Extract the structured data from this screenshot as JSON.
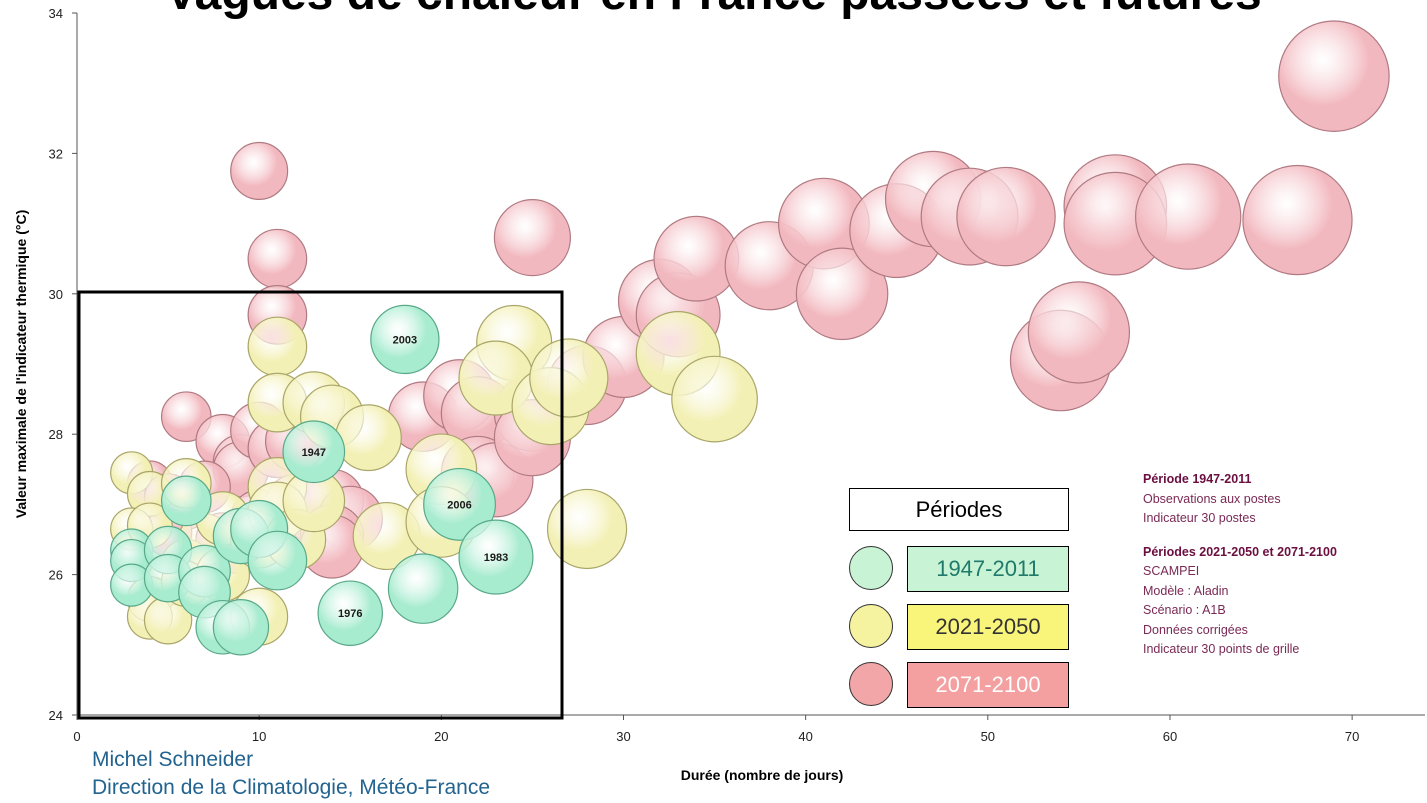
{
  "chart_data": {
    "type": "scatter",
    "title": "Vagues de chaleur en France passées et futures",
    "xlabel": "Durée (nombre de jours)",
    "ylabel": "Valeur maximale de l'indicateur thermique (°C)",
    "xlim": [
      0,
      74
    ],
    "ylim": [
      24,
      34
    ],
    "xticks": [
      0,
      10,
      20,
      30,
      40,
      50,
      60,
      70
    ],
    "yticks": [
      24,
      26,
      28,
      30,
      32,
      34
    ],
    "grid": false,
    "series": [
      {
        "name": "2071-2100",
        "color": "#f2b8bf",
        "points": [
          {
            "x": 10,
            "y": 31.75
          },
          {
            "x": 11,
            "y": 30.5
          },
          {
            "x": 11,
            "y": 29.7
          },
          {
            "x": 6,
            "y": 28.25
          },
          {
            "x": 8,
            "y": 27.9
          },
          {
            "x": 9,
            "y": 27.6
          },
          {
            "x": 9,
            "y": 27.5
          },
          {
            "x": 10,
            "y": 28.05
          },
          {
            "x": 11,
            "y": 27.8
          },
          {
            "x": 12,
            "y": 27.9
          },
          {
            "x": 4,
            "y": 27.3
          },
          {
            "x": 5,
            "y": 27.1
          },
          {
            "x": 7,
            "y": 27.25
          },
          {
            "x": 6,
            "y": 27.0
          },
          {
            "x": 5,
            "y": 26.6
          },
          {
            "x": 8,
            "y": 26.5
          },
          {
            "x": 9,
            "y": 26.4
          },
          {
            "x": 10,
            "y": 26.8
          },
          {
            "x": 12,
            "y": 27.0
          },
          {
            "x": 13,
            "y": 26.9
          },
          {
            "x": 14,
            "y": 27.05
          },
          {
            "x": 15,
            "y": 26.8
          },
          {
            "x": 14,
            "y": 26.55
          },
          {
            "x": 14,
            "y": 26.4
          },
          {
            "x": 19,
            "y": 28.25
          },
          {
            "x": 21,
            "y": 28.55
          },
          {
            "x": 22,
            "y": 28.3
          },
          {
            "x": 22,
            "y": 27.45
          },
          {
            "x": 23,
            "y": 27.35
          },
          {
            "x": 25,
            "y": 30.8
          },
          {
            "x": 25,
            "y": 28.3
          },
          {
            "x": 25,
            "y": 27.95
          },
          {
            "x": 28,
            "y": 28.7
          },
          {
            "x": 30,
            "y": 29.1
          },
          {
            "x": 32,
            "y": 29.9
          },
          {
            "x": 33,
            "y": 29.7
          },
          {
            "x": 34,
            "y": 30.5
          },
          {
            "x": 38,
            "y": 30.4
          },
          {
            "x": 41,
            "y": 31.0
          },
          {
            "x": 42,
            "y": 30.0
          },
          {
            "x": 45,
            "y": 30.9
          },
          {
            "x": 47,
            "y": 31.35
          },
          {
            "x": 49,
            "y": 31.1
          },
          {
            "x": 51,
            "y": 31.1
          },
          {
            "x": 54,
            "y": 29.05
          },
          {
            "x": 55,
            "y": 29.45
          },
          {
            "x": 57,
            "y": 31.25
          },
          {
            "x": 57,
            "y": 31.0
          },
          {
            "x": 61,
            "y": 31.1
          },
          {
            "x": 67,
            "y": 31.05
          },
          {
            "x": 69,
            "y": 33.1
          }
        ]
      },
      {
        "name": "2021-2050",
        "color": "#f3f0b5",
        "points": [
          {
            "x": 3,
            "y": 27.45
          },
          {
            "x": 4,
            "y": 27.15
          },
          {
            "x": 3,
            "y": 26.65
          },
          {
            "x": 4,
            "y": 26.7
          },
          {
            "x": 5,
            "y": 25.9
          },
          {
            "x": 4,
            "y": 25.65
          },
          {
            "x": 4,
            "y": 25.4
          },
          {
            "x": 5,
            "y": 25.35
          },
          {
            "x": 6,
            "y": 27.3
          },
          {
            "x": 6,
            "y": 26.15
          },
          {
            "x": 6,
            "y": 25.9
          },
          {
            "x": 7,
            "y": 26.5
          },
          {
            "x": 8,
            "y": 26.8
          },
          {
            "x": 8,
            "y": 26.0
          },
          {
            "x": 10,
            "y": 25.4
          },
          {
            "x": 10,
            "y": 26.5
          },
          {
            "x": 11,
            "y": 29.25
          },
          {
            "x": 11,
            "y": 28.45
          },
          {
            "x": 11,
            "y": 27.25
          },
          {
            "x": 11,
            "y": 26.9
          },
          {
            "x": 12,
            "y": 26.5
          },
          {
            "x": 13,
            "y": 28.45
          },
          {
            "x": 13,
            "y": 27.05
          },
          {
            "x": 14,
            "y": 28.25
          },
          {
            "x": 16,
            "y": 27.95
          },
          {
            "x": 17,
            "y": 26.55
          },
          {
            "x": 20,
            "y": 27.5
          },
          {
            "x": 20,
            "y": 26.75
          },
          {
            "x": 24,
            "y": 29.3
          },
          {
            "x": 23,
            "y": 28.8
          },
          {
            "x": 26,
            "y": 28.4
          },
          {
            "x": 27,
            "y": 28.8
          },
          {
            "x": 28,
            "y": 26.65
          },
          {
            "x": 33,
            "y": 29.15
          },
          {
            "x": 35,
            "y": 28.5
          }
        ]
      },
      {
        "name": "1947-2011",
        "color": "#a8ecd0",
        "points": [
          {
            "x": 3,
            "y": 26.35
          },
          {
            "x": 3,
            "y": 26.2
          },
          {
            "x": 3,
            "y": 25.85
          },
          {
            "x": 5,
            "y": 26.35
          },
          {
            "x": 5,
            "y": 25.95
          },
          {
            "x": 6,
            "y": 27.05
          },
          {
            "x": 7,
            "y": 26.05
          },
          {
            "x": 7,
            "y": 25.75
          },
          {
            "x": 8,
            "y": 25.25
          },
          {
            "x": 9,
            "y": 25.25
          },
          {
            "x": 9,
            "y": 26.55
          },
          {
            "x": 10,
            "y": 26.65
          },
          {
            "x": 11,
            "y": 26.2
          },
          {
            "x": 13,
            "y": 27.75,
            "label": "1947"
          },
          {
            "x": 15,
            "y": 25.45,
            "label": "1976"
          },
          {
            "x": 18,
            "y": 29.35,
            "label": "2003"
          },
          {
            "x": 19,
            "y": 25.8
          },
          {
            "x": 21,
            "y": 27.0,
            "label": "2006"
          },
          {
            "x": 23,
            "y": 26.25,
            "label": "1983"
          }
        ]
      }
    ]
  },
  "legend": {
    "title": "Périodes",
    "items": [
      {
        "label": "1947-2011",
        "circle_color": "#c8f3d4",
        "box_color": "#c8f3d4",
        "text_color": "#1f7a6b"
      },
      {
        "label": "2021-2050",
        "circle_color": "#f5f2a0",
        "box_color": "#f9f47a",
        "text_color": "#333333"
      },
      {
        "label": "2071-2100",
        "circle_color": "#f2a6a8",
        "box_color": "#f49fa0",
        "text_color": "#ffffff"
      }
    ]
  },
  "notes": {
    "section1": {
      "heading": "Période 1947-2011",
      "lines": [
        "Observations aux postes",
        "Indicateur 30 postes"
      ]
    },
    "section2": {
      "heading": "Périodes 2021-2050 et 2071-2100",
      "lines": [
        "SCAMPEI",
        "Modèle : Aladin",
        "Scénario : A1B",
        "Données corrigées",
        "Indicateur 30 points de grille"
      ]
    }
  },
  "credits": {
    "author": "Michel Schneider",
    "org": "Direction de la Climatologie, Météo-France"
  }
}
